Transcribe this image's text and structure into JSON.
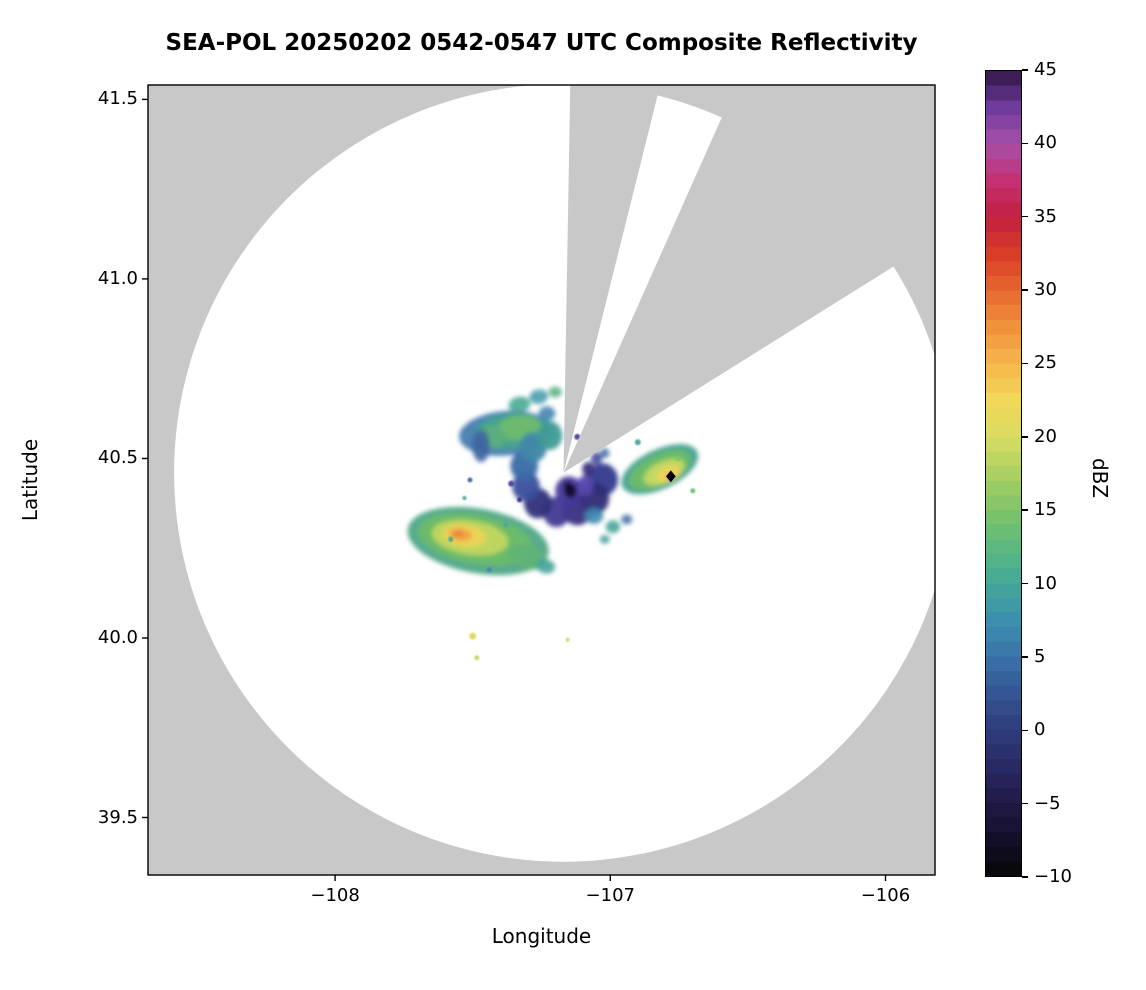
{
  "title": "SEA-POL 20250202 0542-0547 UTC Composite Reflectivity",
  "chart_data": {
    "type": "heatmap",
    "title": "SEA-POL 20250202 0542-0547 UTC Composite Reflectivity",
    "xlabel": "Longitude",
    "ylabel": "Latitude",
    "xlim": [
      -108.68,
      -105.82
    ],
    "ylim": [
      39.34,
      41.54
    ],
    "xticks": [
      -108,
      -107,
      -106
    ],
    "xtick_labels": [
      "−108",
      "−107",
      "−106"
    ],
    "yticks": [
      39.5,
      40.0,
      40.5,
      41.0,
      41.5
    ],
    "ytick_labels": [
      "39.5",
      "40.0",
      "40.5",
      "41.0",
      "41.5"
    ],
    "grid": false,
    "background_color": "#c8c8c8",
    "coverage": {
      "center_lon": -107.17,
      "center_lat": 40.46,
      "radius_lon": 1.415,
      "radius_lat": 1.083,
      "blocked_sectors_deg": [
        [
          1,
          14
        ],
        [
          24,
          58
        ]
      ]
    },
    "marker": {
      "lon": -106.78,
      "lat": 40.45,
      "shape": "diamond",
      "color": "#000000"
    },
    "colorbar": {
      "label": "dBZ",
      "min": -10,
      "max": 45,
      "tick_values": [
        -10,
        -5,
        0,
        5,
        10,
        15,
        20,
        25,
        30,
        35,
        40,
        45
      ],
      "tick_labels": [
        "−10",
        "−5",
        "0",
        "5",
        "10",
        "15",
        "20",
        "25",
        "30",
        "35",
        "40",
        "45"
      ],
      "stops": [
        {
          "v": -10,
          "c": "#060606"
        },
        {
          "v": -7.5,
          "c": "#140f29"
        },
        {
          "v": -5,
          "c": "#201a47"
        },
        {
          "v": -2.5,
          "c": "#292963"
        },
        {
          "v": 0,
          "c": "#2f3c7c"
        },
        {
          "v": 2.5,
          "c": "#345694"
        },
        {
          "v": 5,
          "c": "#3973a9"
        },
        {
          "v": 7.5,
          "c": "#3d90ad"
        },
        {
          "v": 10,
          "c": "#43a898"
        },
        {
          "v": 12.5,
          "c": "#5cb87e"
        },
        {
          "v": 15,
          "c": "#7fc468"
        },
        {
          "v": 17.5,
          "c": "#abd061"
        },
        {
          "v": 20,
          "c": "#d7dc62"
        },
        {
          "v": 22.5,
          "c": "#f3d75a"
        },
        {
          "v": 25,
          "c": "#f5b64b"
        },
        {
          "v": 27.5,
          "c": "#f0913c"
        },
        {
          "v": 30,
          "c": "#e66830"
        },
        {
          "v": 32.5,
          "c": "#d93d28"
        },
        {
          "v": 35,
          "c": "#c2203f"
        },
        {
          "v": 37.5,
          "c": "#c43071"
        },
        {
          "v": 40,
          "c": "#a74fa8"
        },
        {
          "v": 42.5,
          "c": "#6f3c9e"
        },
        {
          "v": 45,
          "c": "#2f1543"
        }
      ]
    },
    "echoes": [
      {
        "lon": -107.38,
        "lat": 40.57,
        "rx": 0.17,
        "ry": 0.062,
        "rot": -5,
        "c": "#4179ad",
        "o": 0.92
      },
      {
        "lon": -107.36,
        "lat": 40.575,
        "rx": 0.13,
        "ry": 0.05,
        "rot": -5,
        "c": "#45a38f",
        "o": 0.95
      },
      {
        "lon": -107.33,
        "lat": 40.585,
        "rx": 0.08,
        "ry": 0.035,
        "rot": -5,
        "c": "#6fbc6f",
        "o": 0.95
      },
      {
        "lon": -107.43,
        "lat": 40.56,
        "rx": 0.05,
        "ry": 0.032,
        "rot": 0,
        "c": "#5fae7c",
        "o": 0.9
      },
      {
        "lon": -107.47,
        "lat": 40.535,
        "rx": 0.032,
        "ry": 0.045,
        "rot": 0,
        "c": "#3c64a2",
        "o": 0.9
      },
      {
        "lon": -107.33,
        "lat": 40.65,
        "rx": 0.04,
        "ry": 0.022,
        "rot": -10,
        "c": "#49a893",
        "o": 0.9
      },
      {
        "lon": -107.26,
        "lat": 40.672,
        "rx": 0.034,
        "ry": 0.02,
        "rot": -10,
        "c": "#4a9fae",
        "o": 0.9
      },
      {
        "lon": -107.2,
        "lat": 40.685,
        "rx": 0.024,
        "ry": 0.015,
        "rot": 0,
        "c": "#5fb386",
        "o": 0.9
      },
      {
        "lon": -107.23,
        "lat": 40.625,
        "rx": 0.03,
        "ry": 0.02,
        "rot": 0,
        "c": "#4286b0",
        "o": 0.9
      },
      {
        "lon": -107.027,
        "lat": 40.441,
        "rx": 0.055,
        "ry": 0.045,
        "rot": 0,
        "c": "#343a8c",
        "o": 0.95
      },
      {
        "lon": -107.059,
        "lat": 40.389,
        "rx": 0.055,
        "ry": 0.045,
        "rot": 0,
        "c": "#2f2d74",
        "o": 0.95
      },
      {
        "lon": -107.12,
        "lat": 40.356,
        "rx": 0.055,
        "ry": 0.042,
        "rot": 0,
        "c": "#39307f",
        "o": 0.95
      },
      {
        "lon": -107.195,
        "lat": 40.351,
        "rx": 0.05,
        "ry": 0.042,
        "rot": 0,
        "c": "#423a92",
        "o": 0.95
      },
      {
        "lon": -107.263,
        "lat": 40.375,
        "rx": 0.05,
        "ry": 0.042,
        "rot": 0,
        "c": "#2f3078",
        "o": 0.95
      },
      {
        "lon": -107.306,
        "lat": 40.422,
        "rx": 0.05,
        "ry": 0.042,
        "rot": 0,
        "c": "#3a4f9c",
        "o": 0.95
      },
      {
        "lon": -107.313,
        "lat": 40.479,
        "rx": 0.05,
        "ry": 0.042,
        "rot": 0,
        "c": "#3a6aa6",
        "o": 0.95
      },
      {
        "lon": -107.281,
        "lat": 40.531,
        "rx": 0.05,
        "ry": 0.042,
        "rot": 0,
        "c": "#3f87a8",
        "o": 0.95
      },
      {
        "lon": -107.22,
        "lat": 40.564,
        "rx": 0.045,
        "ry": 0.04,
        "rot": 0,
        "c": "#3f9b96",
        "o": 0.95
      },
      {
        "lon": -107.15,
        "lat": 40.41,
        "rx": 0.05,
        "ry": 0.04,
        "rot": 0,
        "c": "#473a9b",
        "o": 0.95
      },
      {
        "lon": -107.09,
        "lat": 40.425,
        "rx": 0.03,
        "ry": 0.028,
        "rot": 0,
        "c": "#5546ad",
        "o": 0.95
      },
      {
        "lon": -107.08,
        "lat": 40.47,
        "rx": 0.022,
        "ry": 0.02,
        "rot": 0,
        "c": "#3a2f7c",
        "o": 0.95
      },
      {
        "lon": -107.145,
        "lat": 40.41,
        "rx": 0.024,
        "ry": 0.02,
        "rot": 0,
        "c": "#140e2a",
        "o": 0.95
      },
      {
        "lon": -107.155,
        "lat": 40.425,
        "rx": 0.013,
        "ry": 0.012,
        "rot": 0,
        "c": "#0b0b16",
        "o": 0.95
      },
      {
        "lon": -107.05,
        "lat": 40.5,
        "rx": 0.02,
        "ry": 0.018,
        "rot": 0,
        "c": "#434a9e",
        "o": 0.9
      },
      {
        "lon": -107.02,
        "lat": 40.515,
        "rx": 0.016,
        "ry": 0.014,
        "rot": 0,
        "c": "#3f6fa8",
        "o": 0.9
      },
      {
        "lon": -106.82,
        "lat": 40.47,
        "rx": 0.15,
        "ry": 0.055,
        "rot": -25,
        "c": "#3f9f8a",
        "o": 0.92
      },
      {
        "lon": -106.82,
        "lat": 40.468,
        "rx": 0.12,
        "ry": 0.043,
        "rot": -25,
        "c": "#6cbc68",
        "o": 0.95
      },
      {
        "lon": -106.805,
        "lat": 40.462,
        "rx": 0.08,
        "ry": 0.03,
        "rot": -25,
        "c": "#c6d862",
        "o": 0.95
      },
      {
        "lon": -106.79,
        "lat": 40.457,
        "rx": 0.045,
        "ry": 0.018,
        "rot": -25,
        "c": "#eed758",
        "o": 0.95
      },
      {
        "lon": -106.786,
        "lat": 40.452,
        "rx": 0.018,
        "ry": 0.009,
        "rot": -25,
        "c": "#f2b04a",
        "o": 0.95
      },
      {
        "lon": -107.48,
        "lat": 40.27,
        "rx": 0.26,
        "ry": 0.09,
        "rot": 10,
        "c": "#4aa482",
        "o": 0.92
      },
      {
        "lon": -107.49,
        "lat": 40.275,
        "rx": 0.21,
        "ry": 0.068,
        "rot": 10,
        "c": "#6cbc68",
        "o": 0.95
      },
      {
        "lon": -107.51,
        "lat": 40.28,
        "rx": 0.14,
        "ry": 0.048,
        "rot": 8,
        "c": "#c2d65e",
        "o": 0.95
      },
      {
        "lon": -107.53,
        "lat": 40.285,
        "rx": 0.08,
        "ry": 0.03,
        "rot": 8,
        "c": "#edd356",
        "o": 0.95
      },
      {
        "lon": -107.545,
        "lat": 40.288,
        "rx": 0.042,
        "ry": 0.017,
        "rot": 8,
        "c": "#f0a044",
        "o": 0.95
      },
      {
        "lon": -107.553,
        "lat": 40.29,
        "rx": 0.018,
        "ry": 0.009,
        "rot": 8,
        "c": "#e8823a",
        "o": 0.95
      },
      {
        "lon": -107.3,
        "lat": 40.225,
        "rx": 0.07,
        "ry": 0.034,
        "rot": 14,
        "c": "#5fb377",
        "o": 0.92
      },
      {
        "lon": -107.235,
        "lat": 40.2,
        "rx": 0.035,
        "ry": 0.02,
        "rot": 14,
        "c": "#45a49a",
        "o": 0.9
      },
      {
        "lon": -107.06,
        "lat": 40.34,
        "rx": 0.034,
        "ry": 0.022,
        "rot": 0,
        "c": "#3f87b0",
        "o": 0.9
      },
      {
        "lon": -106.99,
        "lat": 40.31,
        "rx": 0.026,
        "ry": 0.018,
        "rot": 0,
        "c": "#45a49a",
        "o": 0.9
      },
      {
        "lon": -106.94,
        "lat": 40.33,
        "rx": 0.02,
        "ry": 0.014,
        "rot": 0,
        "c": "#4a74a8",
        "o": 0.9
      },
      {
        "lon": -107.02,
        "lat": 40.275,
        "rx": 0.018,
        "ry": 0.012,
        "rot": 0,
        "c": "#4a9f9f",
        "o": 0.9
      }
    ],
    "speckles": [
      {
        "lon": -107.36,
        "lat": 40.43,
        "r": 3,
        "c": "#4a3f9f"
      },
      {
        "lon": -107.33,
        "lat": 40.385,
        "r": 2.5,
        "c": "#39307f"
      },
      {
        "lon": -107.51,
        "lat": 40.44,
        "r": 2.5,
        "c": "#3c64a2"
      },
      {
        "lon": -107.53,
        "lat": 40.39,
        "r": 2,
        "c": "#45a49a"
      },
      {
        "lon": -107.38,
        "lat": 40.315,
        "r": 2.5,
        "c": "#4a9f9f"
      },
      {
        "lon": -106.9,
        "lat": 40.545,
        "r": 3,
        "c": "#49a0a0"
      },
      {
        "lon": -106.7,
        "lat": 40.41,
        "r": 2.5,
        "c": "#6cbc68"
      },
      {
        "lon": -107.5,
        "lat": 40.005,
        "r": 3.5,
        "c": "#ddd95c"
      },
      {
        "lon": -107.485,
        "lat": 39.945,
        "r": 2.5,
        "c": "#c9d45e"
      },
      {
        "lon": -107.155,
        "lat": 39.995,
        "r": 2,
        "c": "#cfd060"
      },
      {
        "lon": -107.44,
        "lat": 40.19,
        "r": 2.5,
        "c": "#4a7fae"
      },
      {
        "lon": -107.58,
        "lat": 40.275,
        "r": 2.5,
        "c": "#45a49a"
      },
      {
        "lon": -107.12,
        "lat": 40.56,
        "r": 3,
        "c": "#3a3f93"
      },
      {
        "lon": -106.755,
        "lat": 40.5,
        "r": 2.5,
        "c": "#7fc468"
      }
    ]
  }
}
